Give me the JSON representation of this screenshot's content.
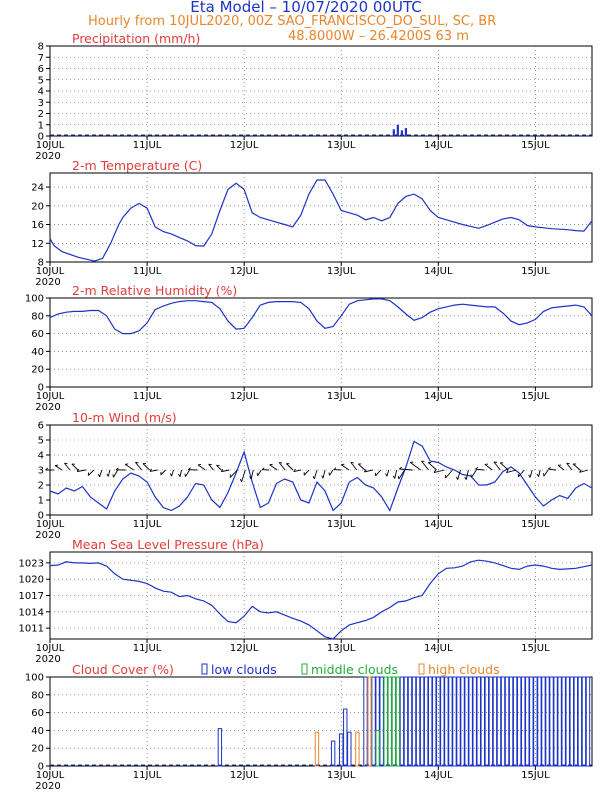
{
  "header": {
    "title": "Eta Model – 10/07/2020 00UTC",
    "subtitle_line1": "Hourly from 10JUL2020, 00Z   SAO_FRANCISCO_DO_SUL, SC, BR",
    "subtitle_line2": "48.8000W – 26.4200S       63   m"
  },
  "colors": {
    "line": "#1c33c8",
    "title": "#e23c3c",
    "header": "#e8862c",
    "mid": "#1fae3a",
    "high": "#e8862c"
  },
  "chart_data": [
    {
      "type": "bar",
      "title": "Precipitation (mm/h)",
      "xlabel": "",
      "ylabel": "",
      "x_range_hours": [
        0,
        134
      ],
      "ylim": [
        0,
        8
      ],
      "yticks": [
        0,
        1,
        2,
        3,
        4,
        5,
        6,
        7,
        8
      ],
      "xticks": [
        "10JUL",
        "11JUL",
        "12JUL",
        "13JUL",
        "14JUL",
        "15JUL"
      ],
      "year_label": "2020",
      "grid": true,
      "hours": [
        85,
        86,
        87,
        88
      ],
      "values": [
        0.6,
        1.0,
        0.5,
        0.7
      ]
    },
    {
      "type": "line",
      "title": "2-m Temperature (C)",
      "x_range_hours": [
        0,
        134
      ],
      "ylim": [
        8,
        27
      ],
      "yticks": [
        8,
        12,
        16,
        20,
        24
      ],
      "xticks": [
        "10JUL",
        "11JUL",
        "12JUL",
        "13JUL",
        "14JUL",
        "15JUL"
      ],
      "year_label": "2020",
      "grid": true,
      "x": [
        0,
        1,
        3,
        5,
        7,
        9,
        11,
        13,
        15,
        17,
        18,
        20,
        22,
        24,
        26,
        28,
        30,
        32,
        34,
        36,
        38,
        40,
        42,
        44,
        46,
        48,
        50,
        52,
        54,
        56,
        58,
        60,
        62,
        64,
        66,
        68,
        70,
        72,
        74,
        76,
        78,
        80,
        82,
        84,
        86,
        88,
        90,
        92,
        94,
        96,
        98,
        100,
        102,
        104,
        106,
        108,
        110,
        112,
        114,
        116,
        118,
        120,
        122,
        124,
        126,
        128,
        130,
        132,
        134
      ],
      "values": [
        13.0,
        11.5,
        10.2,
        9.6,
        9.0,
        8.6,
        8.2,
        8.8,
        12.0,
        16.0,
        17.5,
        19.5,
        20.5,
        19.5,
        15.5,
        14.5,
        14.0,
        13.2,
        12.5,
        11.5,
        11.4,
        14.0,
        19.0,
        23.5,
        24.8,
        23.5,
        18.5,
        17.5,
        17.0,
        16.5,
        16.0,
        15.5,
        18.0,
        22.5,
        25.5,
        25.5,
        22.5,
        19.0,
        18.5,
        18.0,
        17.0,
        17.5,
        16.8,
        17.5,
        20.5,
        22.0,
        22.5,
        21.5,
        19.0,
        17.5,
        17.0,
        16.5,
        16.0,
        15.6,
        15.2,
        15.8,
        16.5,
        17.2,
        17.5,
        17.0,
        15.8,
        15.5,
        15.3,
        15.1,
        15.0,
        14.9,
        14.7,
        14.6,
        16.8
      ]
    },
    {
      "type": "line",
      "title": "2-m Relative Humidity (%)",
      "x_range_hours": [
        0,
        134
      ],
      "ylim": [
        0,
        100
      ],
      "yticks": [
        0,
        20,
        40,
        60,
        80,
        100
      ],
      "xticks": [
        "10JUL",
        "11JUL",
        "12JUL",
        "13JUL",
        "14JUL",
        "15JUL"
      ],
      "year_label": "2020",
      "grid": true,
      "x": [
        0,
        2,
        4,
        6,
        8,
        10,
        12,
        14,
        16,
        18,
        20,
        22,
        24,
        26,
        28,
        30,
        32,
        34,
        36,
        38,
        40,
        42,
        44,
        46,
        48,
        50,
        52,
        54,
        56,
        58,
        60,
        62,
        64,
        66,
        68,
        70,
        72,
        74,
        76,
        78,
        80,
        82,
        84,
        86,
        88,
        90,
        92,
        94,
        96,
        98,
        100,
        102,
        104,
        106,
        108,
        110,
        112,
        114,
        116,
        118,
        120,
        122,
        124,
        126,
        128,
        130,
        132,
        134
      ],
      "values": [
        78,
        82,
        84,
        85,
        85,
        86,
        86,
        80,
        65,
        60,
        60,
        63,
        72,
        87,
        91,
        94,
        96,
        97,
        97,
        96,
        95,
        88,
        74,
        65,
        66,
        78,
        92,
        95,
        96,
        96,
        96,
        95,
        88,
        74,
        66,
        68,
        80,
        93,
        97,
        98,
        99,
        99,
        97,
        90,
        82,
        75,
        78,
        84,
        88,
        90,
        92,
        93,
        92,
        91,
        90,
        90,
        83,
        74,
        70,
        72,
        76,
        85,
        89,
        90,
        91,
        92,
        90,
        80
      ]
    },
    {
      "type": "line",
      "title": "10-m Wind (m/s)",
      "x_range_hours": [
        0,
        134
      ],
      "ylim": [
        0,
        6
      ],
      "yticks": [
        0,
        1,
        2,
        3,
        4,
        5,
        6
      ],
      "xticks": [
        "10JUL",
        "11JUL",
        "12JUL",
        "13JUL",
        "14JUL",
        "15JUL"
      ],
      "year_label": "2020",
      "grid": true,
      "x": [
        0,
        2,
        4,
        6,
        8,
        10,
        12,
        14,
        16,
        18,
        20,
        22,
        24,
        26,
        28,
        30,
        32,
        34,
        36,
        38,
        40,
        42,
        44,
        46,
        48,
        50,
        52,
        54,
        56,
        58,
        60,
        62,
        64,
        66,
        68,
        70,
        72,
        74,
        76,
        78,
        80,
        82,
        84,
        86,
        88,
        90,
        92,
        94,
        96,
        98,
        100,
        102,
        104,
        106,
        108,
        110,
        112,
        114,
        116,
        118,
        120,
        122,
        124,
        126,
        128,
        130,
        132,
        134
      ],
      "values": [
        1.6,
        1.4,
        1.8,
        1.6,
        1.9,
        1.2,
        0.8,
        0.4,
        1.6,
        2.4,
        2.8,
        2.6,
        2.2,
        1.2,
        0.5,
        0.3,
        0.6,
        1.2,
        2.1,
        2.0,
        1.0,
        0.5,
        1.5,
        2.8,
        4.2,
        2.2,
        0.5,
        0.8,
        2.1,
        2.4,
        2.2,
        1.0,
        0.8,
        2.2,
        1.6,
        0.3,
        0.8,
        2.2,
        2.5,
        2.0,
        1.8,
        1.2,
        0.3,
        1.8,
        3.2,
        4.9,
        4.6,
        3.6,
        3.5,
        3.2,
        3.0,
        2.7,
        2.6,
        2.0,
        2.0,
        2.2,
        2.9,
        3.2,
        2.8,
        2.0,
        1.2,
        0.6,
        1.0,
        1.3,
        1.1,
        1.8,
        2.1,
        1.8
      ],
      "barb_count": 68
    },
    {
      "type": "line",
      "title": "Mean Sea Level Pressure (hPa)",
      "x_range_hours": [
        0,
        134
      ],
      "ylim": [
        1009,
        1025
      ],
      "yticks": [
        1011,
        1014,
        1017,
        1020,
        1023
      ],
      "xticks": [
        "10JUL",
        "11JUL",
        "12JUL",
        "13JUL",
        "14JUL",
        "15JUL"
      ],
      "year_label": "2020",
      "grid": true,
      "x": [
        0,
        2,
        4,
        6,
        8,
        10,
        12,
        14,
        16,
        18,
        20,
        22,
        24,
        26,
        28,
        30,
        32,
        34,
        36,
        38,
        40,
        42,
        44,
        46,
        48,
        50,
        52,
        54,
        56,
        58,
        60,
        62,
        64,
        66,
        68,
        70,
        72,
        74,
        76,
        78,
        80,
        82,
        84,
        86,
        88,
        90,
        92,
        94,
        96,
        98,
        100,
        102,
        104,
        106,
        108,
        110,
        112,
        114,
        116,
        118,
        120,
        122,
        124,
        126,
        128,
        130,
        132,
        134
      ],
      "values": [
        1022.5,
        1022.6,
        1023.2,
        1023.0,
        1023.0,
        1022.9,
        1023.0,
        1022.4,
        1021.0,
        1020.0,
        1019.8,
        1019.6,
        1019.2,
        1018.4,
        1017.8,
        1017.6,
        1016.8,
        1017.0,
        1016.4,
        1016.0,
        1015.2,
        1013.6,
        1012.2,
        1012.0,
        1013.2,
        1015.0,
        1014.0,
        1013.8,
        1014.0,
        1013.4,
        1012.8,
        1012.3,
        1011.6,
        1010.5,
        1009.4,
        1009.0,
        1010.5,
        1011.6,
        1012.0,
        1012.4,
        1013.0,
        1014.0,
        1014.8,
        1015.8,
        1016.0,
        1016.6,
        1017.0,
        1019.2,
        1021.0,
        1022.0,
        1022.1,
        1022.4,
        1023.2,
        1023.5,
        1023.3,
        1023.0,
        1022.5,
        1022.0,
        1021.8,
        1022.4,
        1022.6,
        1022.4,
        1022.0,
        1021.8,
        1021.9,
        1022.0,
        1022.3,
        1022.6
      ]
    },
    {
      "type": "bar",
      "title": "Cloud Cover (%)",
      "x_range_hours": [
        0,
        134
      ],
      "ylim": [
        0,
        100
      ],
      "yticks": [
        0,
        20,
        40,
        60,
        80,
        100
      ],
      "xticks": [
        "10JUL",
        "11JUL",
        "12JUL",
        "13JUL",
        "14JUL",
        "15JUL"
      ],
      "year_label": "2020",
      "grid": true,
      "legend": [
        "low clouds",
        "middle clouds",
        "high clouds"
      ],
      "low": [
        {
          "h": 42,
          "v": 42
        },
        {
          "h": 70,
          "v": 28
        },
        {
          "h": 72,
          "v": 36
        },
        {
          "h": 73,
          "v": 64
        },
        {
          "h": 74,
          "v": 38
        },
        {
          "h": 78,
          "v": 100
        },
        {
          "h": 79,
          "v": 100
        },
        {
          "h": 80,
          "v": 100
        },
        {
          "h": 81,
          "v": 100
        },
        {
          "h": 82,
          "v": 100
        },
        {
          "h": 83,
          "v": 100
        },
        {
          "h": 84,
          "v": 100
        },
        {
          "h": 85,
          "v": 100
        },
        {
          "h": 86,
          "v": 100
        },
        {
          "h": 87,
          "v": 100
        },
        {
          "h": 88,
          "v": 100
        },
        {
          "h": 89,
          "v": 100
        },
        {
          "h": 90,
          "v": 100
        },
        {
          "h": 91,
          "v": 100
        },
        {
          "h": 92,
          "v": 100
        },
        {
          "h": 93,
          "v": 100
        },
        {
          "h": 94,
          "v": 100
        },
        {
          "h": 95,
          "v": 100
        },
        {
          "h": 96,
          "v": 100
        },
        {
          "h": 97,
          "v": 100
        },
        {
          "h": 98,
          "v": 100
        },
        {
          "h": 99,
          "v": 100
        },
        {
          "h": 100,
          "v": 100
        },
        {
          "h": 101,
          "v": 100
        },
        {
          "h": 102,
          "v": 100
        },
        {
          "h": 103,
          "v": 100
        },
        {
          "h": 104,
          "v": 100
        },
        {
          "h": 105,
          "v": 100
        },
        {
          "h": 106,
          "v": 100
        },
        {
          "h": 107,
          "v": 100
        },
        {
          "h": 108,
          "v": 100
        },
        {
          "h": 109,
          "v": 100
        },
        {
          "h": 110,
          "v": 100
        },
        {
          "h": 111,
          "v": 100
        },
        {
          "h": 112,
          "v": 100
        },
        {
          "h": 113,
          "v": 100
        },
        {
          "h": 114,
          "v": 100
        },
        {
          "h": 115,
          "v": 100
        },
        {
          "h": 116,
          "v": 100
        },
        {
          "h": 117,
          "v": 100
        },
        {
          "h": 118,
          "v": 100
        },
        {
          "h": 119,
          "v": 100
        },
        {
          "h": 120,
          "v": 100
        },
        {
          "h": 121,
          "v": 100
        },
        {
          "h": 122,
          "v": 100
        },
        {
          "h": 123,
          "v": 100
        },
        {
          "h": 124,
          "v": 100
        },
        {
          "h": 125,
          "v": 100
        },
        {
          "h": 126,
          "v": 100
        },
        {
          "h": 127,
          "v": 100
        },
        {
          "h": 128,
          "v": 100
        },
        {
          "h": 129,
          "v": 100
        },
        {
          "h": 130,
          "v": 100
        },
        {
          "h": 131,
          "v": 100
        },
        {
          "h": 132,
          "v": 100
        },
        {
          "h": 133,
          "v": 100
        }
      ],
      "middle": [
        {
          "h": 81,
          "v": 40
        },
        {
          "h": 83,
          "v": 100
        },
        {
          "h": 84,
          "v": 100
        },
        {
          "h": 85,
          "v": 100
        },
        {
          "h": 86,
          "v": 100
        }
      ],
      "high": [
        {
          "h": 66,
          "v": 38
        },
        {
          "h": 76,
          "v": 38
        },
        {
          "h": 79,
          "v": 100
        }
      ]
    }
  ]
}
